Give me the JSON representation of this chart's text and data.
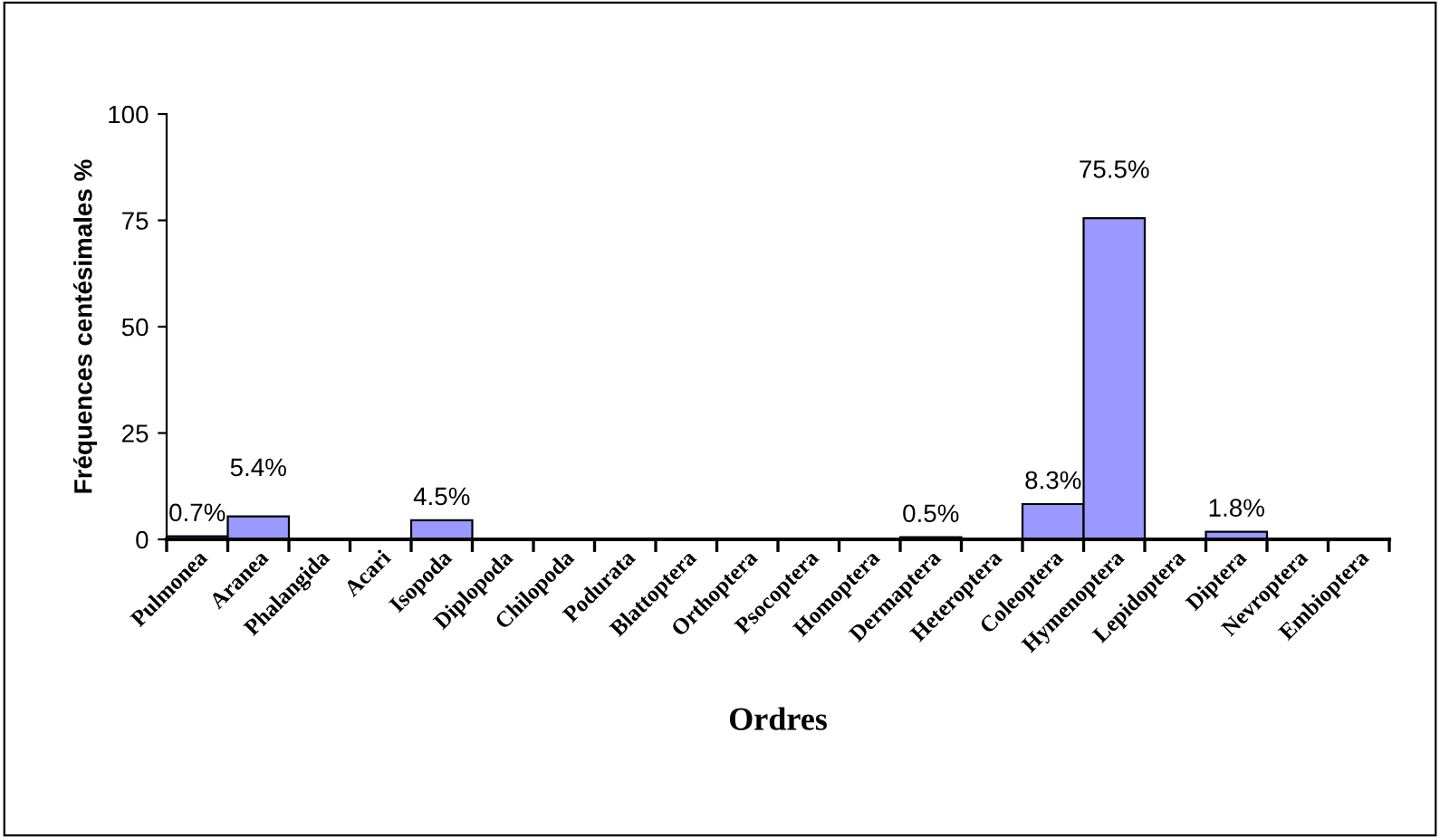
{
  "chart_data": {
    "type": "bar",
    "xlabel": "Ordres",
    "ylabel": "Fréquences centésimales %",
    "categories": [
      "Pulmonea",
      "Aranea",
      "Phalangida",
      "Acari",
      "Isopoda",
      "Diplopoda",
      "Chilopoda",
      "Podurata",
      "Blattoptera",
      "Orthoptera",
      "Psocoptera",
      "Homoptera",
      "Dermaptera",
      "Heteroptera",
      "Coleoptera",
      "Hymenoptera",
      "Lepidoptera",
      "Diptera",
      "Nevroptera",
      "Embioptera"
    ],
    "values": [
      0.7,
      5.4,
      null,
      null,
      4.5,
      null,
      null,
      null,
      null,
      null,
      null,
      null,
      0.5,
      null,
      8.3,
      75.5,
      null,
      1.8,
      null,
      null
    ],
    "value_labels": [
      "0.7%",
      "5.4%",
      null,
      null,
      "4.5%",
      null,
      null,
      null,
      null,
      null,
      null,
      null,
      "0.5%",
      null,
      "8.3%",
      "75.5%",
      null,
      "1.8%",
      null,
      null
    ],
    "color": "#9999ff",
    "ylim": [
      0,
      100
    ],
    "yticks": [
      0,
      25,
      50,
      75,
      100
    ],
    "grid": false,
    "legend": false
  }
}
